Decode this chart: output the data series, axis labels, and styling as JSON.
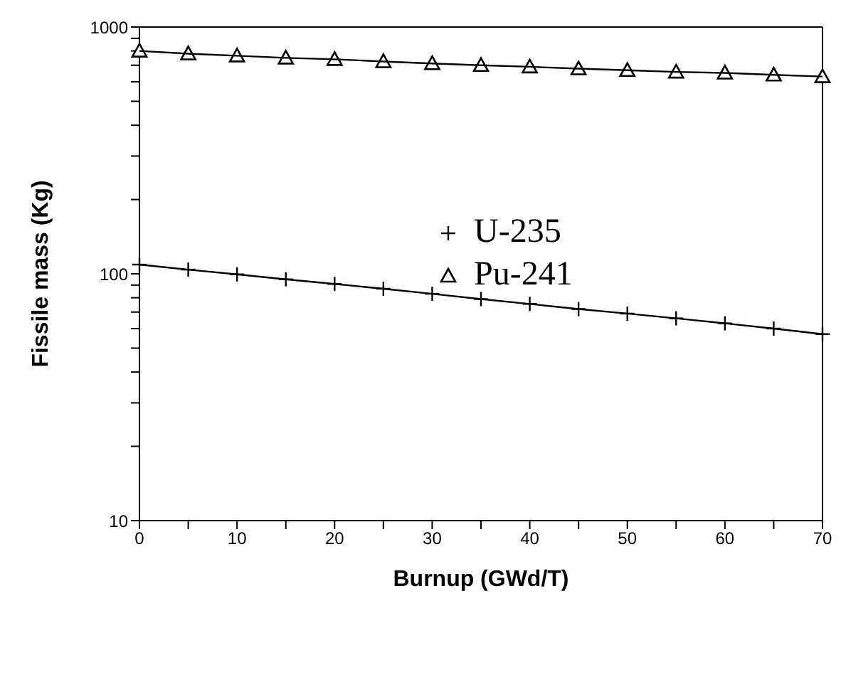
{
  "chart_data": {
    "type": "line",
    "xlabel": "Burnup (GWd/T)",
    "ylabel": "Fissile mass (Kg)",
    "log": "y",
    "grid": false,
    "legend": "center",
    "line_style": "solid",
    "x": [
      0,
      5,
      10,
      15,
      20,
      25,
      30,
      35,
      40,
      45,
      50,
      55,
      60,
      65,
      70
    ],
    "xlim": [
      0,
      70
    ],
    "xticks": [
      0,
      {
        "value": 5,
        "label": null
      },
      10,
      {
        "value": 15,
        "label": null
      },
      20,
      {
        "value": 25,
        "label": null
      },
      30,
      {
        "value": 35,
        "label": null
      },
      40,
      {
        "value": 45,
        "label": null
      },
      50,
      {
        "value": 55,
        "label": null
      },
      60,
      {
        "value": 65,
        "label": null
      },
      70
    ],
    "ylim": [
      10,
      1000
    ],
    "yticks": [
      10,
      {
        "value": 20,
        "label": null
      },
      {
        "value": 30,
        "label": null
      },
      {
        "value": 40,
        "label": null
      },
      {
        "value": 50,
        "label": null
      },
      {
        "value": 60,
        "label": null
      },
      {
        "value": 70,
        "label": null
      },
      {
        "value": 80,
        "label": null
      },
      {
        "value": 90,
        "label": null
      },
      100,
      {
        "value": 200,
        "label": null
      },
      {
        "value": 300,
        "label": null
      },
      {
        "value": 400,
        "label": null
      },
      {
        "value": 500,
        "label": null
      },
      {
        "value": 600,
        "label": null
      },
      {
        "value": 700,
        "label": null
      },
      {
        "value": 800,
        "label": null
      },
      {
        "value": 900,
        "label": null
      },
      1000
    ],
    "series": [
      {
        "name": "U-235",
        "color": "#000000",
        "marker": "cross",
        "values": [
          109,
          104,
          99.5,
          95,
          91,
          87,
          83,
          79,
          75.5,
          72,
          69,
          66,
          63,
          60,
          57
        ]
      },
      {
        "name": "Pu-241",
        "color": "#000000",
        "marker": "triangle",
        "values": [
          800,
          780,
          765,
          750,
          740,
          725,
          712,
          700,
          690,
          678,
          668,
          658,
          652,
          640,
          630
        ]
      }
    ]
  }
}
